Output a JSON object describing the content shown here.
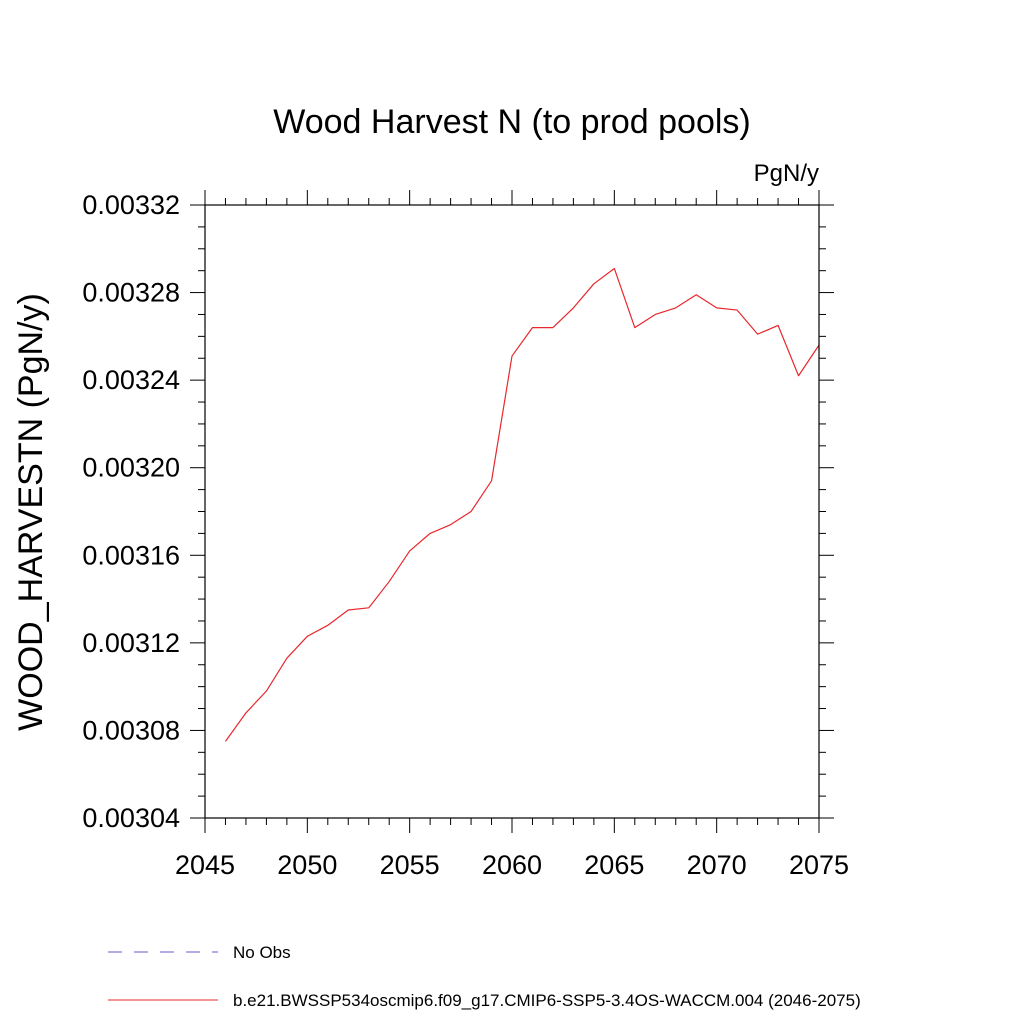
{
  "chart_data": {
    "type": "line",
    "title": "Wood Harvest N (to prod pools)",
    "units_label": "PgN/y",
    "ylabel": "WOOD_HARVESTN  (PgN/y)",
    "xlabel": "",
    "xlim": [
      2045,
      2075
    ],
    "ylim": [
      0.00304,
      0.00332
    ],
    "x_ticks": [
      2045,
      2050,
      2055,
      2060,
      2065,
      2070,
      2075
    ],
    "x_tick_labels": [
      "2045",
      "2050",
      "2055",
      "2060",
      "2065",
      "2070",
      "2075"
    ],
    "y_ticks": [
      0.00304,
      0.00308,
      0.00312,
      0.00316,
      0.0032,
      0.00324,
      0.00328,
      0.00332
    ],
    "y_tick_labels": [
      "0.00304",
      "0.00308",
      "0.00312",
      "0.00316",
      "0.00320",
      "0.00324",
      "0.00328",
      "0.00332"
    ],
    "grid": false,
    "legend_position": "bottom-left",
    "legend": [
      {
        "label": "No Obs",
        "color": "#6a5acd",
        "dash": "dashed"
      },
      {
        "label": "b.e21.BWSSP534oscmip6.f09_g17.CMIP6-SSP5-3.4OS-WACCM.004 (2046-2075)",
        "color": "#e8282d",
        "dash": "solid"
      }
    ],
    "series": [
      {
        "color": "#e8282d",
        "x": [
          2046,
          2047,
          2048,
          2049,
          2050,
          2051,
          2052,
          2053,
          2054,
          2055,
          2056,
          2057,
          2058,
          2059,
          2060,
          2061,
          2062,
          2063,
          2064,
          2065,
          2066,
          2067,
          2068,
          2069,
          2070,
          2071,
          2072,
          2073,
          2074,
          2075
        ],
        "values": [
          0.003075,
          0.003088,
          0.003098,
          0.003113,
          0.003123,
          0.003128,
          0.003135,
          0.003136,
          0.003148,
          0.003162,
          0.00317,
          0.003174,
          0.00318,
          0.003194,
          0.003251,
          0.003264,
          0.003264,
          0.003273,
          0.003284,
          0.003291,
          0.003264,
          0.00327,
          0.003273,
          0.003279,
          0.003273,
          0.003272,
          0.003261,
          0.003265,
          0.003242,
          0.003256
        ]
      }
    ]
  }
}
